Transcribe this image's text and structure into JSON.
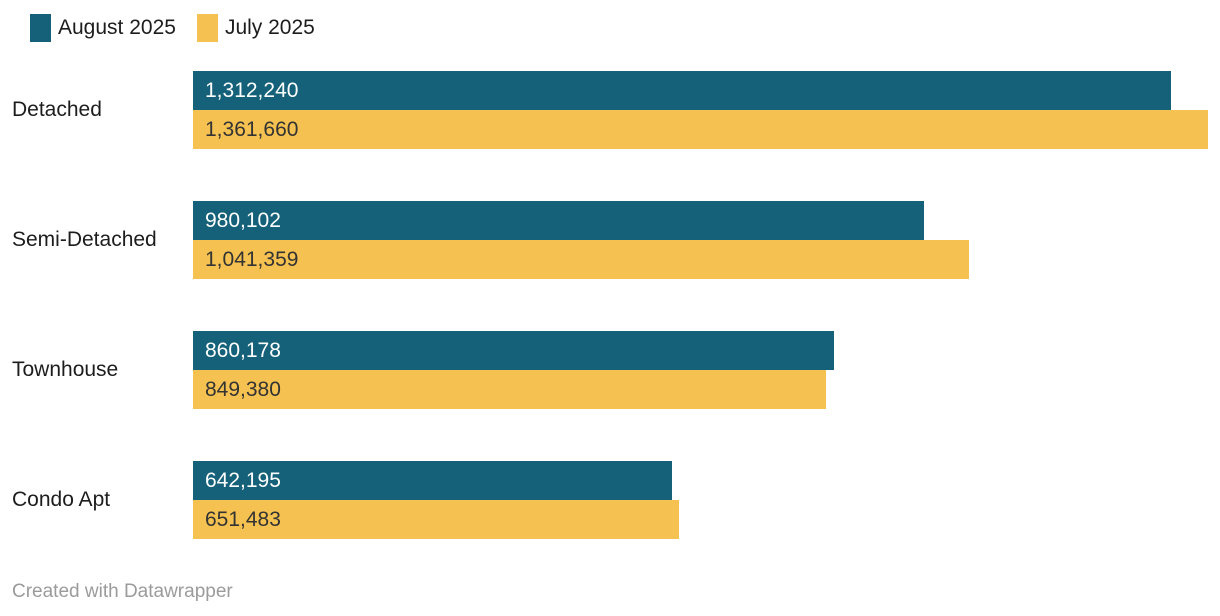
{
  "chart_data": {
    "type": "bar",
    "orientation": "horizontal",
    "title": "",
    "categories": [
      "Detached",
      "Semi-Detached",
      "Townhouse",
      "Condo Apt"
    ],
    "series": [
      {
        "name": "August 2025",
        "color": "#15617A",
        "label_text_color": "#ffffff",
        "values": [
          1312240,
          980102,
          860178,
          642195
        ],
        "labels": [
          "1,312,240",
          "980,102",
          "860,178",
          "642,195"
        ]
      },
      {
        "name": "July 2025",
        "color": "#F5C251",
        "label_text_color": "#333333",
        "values": [
          1361660,
          1041359,
          849380,
          651483
        ],
        "labels": [
          "1,361,660",
          "1,041,359",
          "849,380",
          "651,483"
        ]
      }
    ],
    "max_value": 1361660,
    "xlim": [
      0,
      1361660
    ],
    "grid": false,
    "axis_ticks": "none",
    "value_labels": "inside-left",
    "legend_position": "top-left"
  },
  "legend": {
    "items": [
      {
        "label": "August 2025",
        "color": "#15617A"
      },
      {
        "label": "July 2025",
        "color": "#F5C251"
      }
    ]
  },
  "footer": {
    "text": "Created with Datawrapper"
  }
}
